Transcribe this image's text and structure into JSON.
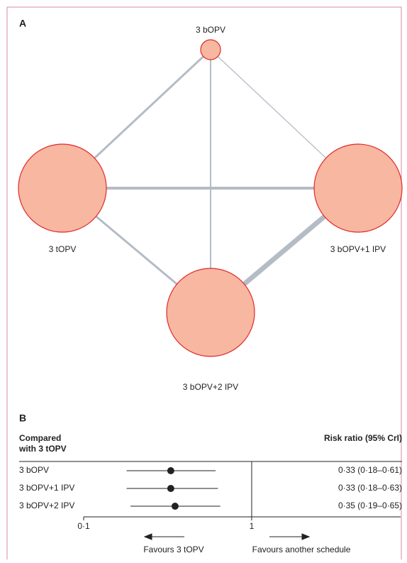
{
  "network": {
    "panel": "A",
    "nodes": [
      {
        "label": "3 bOPV"
      },
      {
        "label": "3 tOPV"
      },
      {
        "label": "3 bOPV+1 IPV"
      },
      {
        "label": "3 bOPV+2 IPV"
      }
    ]
  },
  "chart_data": {
    "type": "forest",
    "panel": "B",
    "header_left": [
      "Compared",
      "with 3 tOPV"
    ],
    "header_right": "Risk ratio (95% CrI)",
    "categories": [
      "3 bOPV",
      "3 bOPV+1 IPV",
      "3 bOPV+2 IPV"
    ],
    "values": [
      0.33,
      0.33,
      0.35
    ],
    "lower": [
      0.18,
      0.18,
      0.19
    ],
    "upper": [
      0.61,
      0.63,
      0.65
    ],
    "value_labels": [
      "0·33 (0·18–0·61)",
      "0·33 (0·18–0·63)",
      "0·35 (0·19–0·65)"
    ],
    "log_x": true,
    "xlim": [
      0.1,
      7.7
    ],
    "xticks": [
      {
        "value": 0.1,
        "label": "0·1"
      },
      1
    ],
    "reference": 1,
    "color": "#222222",
    "annotations": [
      "Favours 3 tOPV",
      "Favours another schedule"
    ]
  }
}
